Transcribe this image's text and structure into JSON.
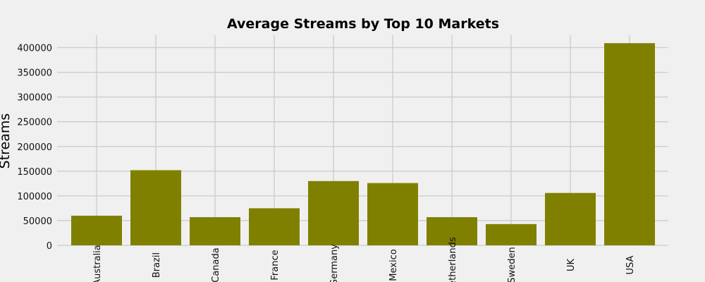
{
  "chart_data": {
    "type": "bar",
    "title": "Average Streams by Top 10 Markets",
    "xlabel": "",
    "ylabel": "Streams",
    "categories": [
      "Australia",
      "Brazil",
      "Canada",
      "France",
      "Germany",
      "Mexico",
      "Netherlands",
      "Sweden",
      "UK",
      "USA"
    ],
    "values": [
      60000,
      152000,
      57000,
      75000,
      130000,
      126000,
      57000,
      43000,
      106000,
      409000
    ],
    "ylim": [
      0,
      425000
    ],
    "yticks": [
      0,
      50000,
      100000,
      150000,
      200000,
      250000,
      300000,
      350000,
      400000
    ],
    "ytick_labels": [
      "0",
      "50000",
      "100000",
      "150000",
      "200000",
      "250000",
      "300000",
      "350000",
      "400000"
    ],
    "bar_color": "#808000",
    "background": "#f0f0f0",
    "grid": true,
    "legend": "none"
  }
}
